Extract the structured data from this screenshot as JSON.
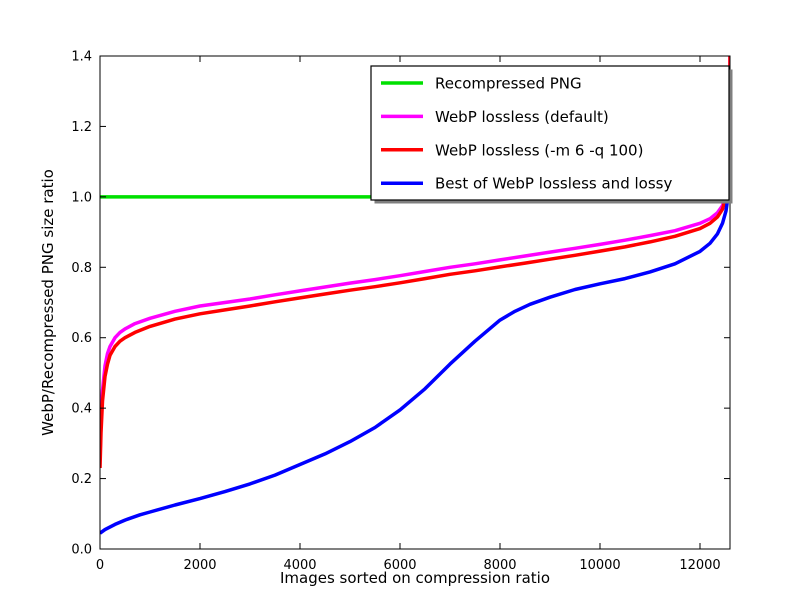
{
  "figure": {
    "background": "#ffffff",
    "frame_color": "#000000"
  },
  "chart_data": {
    "type": "line",
    "title": "",
    "xlabel": "Images sorted on compression ratio",
    "ylabel": "WebP/Recompressed PNG size ratio",
    "xlim": [
      0,
      12600
    ],
    "ylim": [
      0.0,
      1.4
    ],
    "xticks": [
      0,
      2000,
      4000,
      6000,
      8000,
      10000,
      12000
    ],
    "yticks": [
      0.0,
      0.2,
      0.4,
      0.6,
      0.8,
      1.0,
      1.2,
      1.4
    ],
    "grid": false,
    "legend_position": "upper right",
    "legend_shadow": true,
    "series": [
      {
        "name": "Recompressed PNG",
        "color": "#00e000",
        "x": [
          0,
          12600
        ],
        "y": [
          1.0,
          1.0
        ]
      },
      {
        "name": "WebP lossless (default)",
        "color": "#ff00ff",
        "x": [
          0,
          20,
          50,
          100,
          150,
          200,
          300,
          400,
          500,
          700,
          1000,
          1500,
          2000,
          2500,
          3000,
          3500,
          4000,
          4500,
          5000,
          5500,
          6000,
          6500,
          7000,
          7500,
          8000,
          8500,
          9000,
          9500,
          10000,
          10500,
          11000,
          11500,
          12000,
          12200,
          12350,
          12450,
          12520,
          12560,
          12590,
          12600
        ],
        "y": [
          0.26,
          0.36,
          0.45,
          0.52,
          0.555,
          0.575,
          0.6,
          0.615,
          0.625,
          0.64,
          0.655,
          0.675,
          0.69,
          0.7,
          0.71,
          0.722,
          0.733,
          0.744,
          0.755,
          0.765,
          0.776,
          0.788,
          0.8,
          0.81,
          0.821,
          0.832,
          0.843,
          0.854,
          0.865,
          0.877,
          0.89,
          0.904,
          0.925,
          0.938,
          0.955,
          0.975,
          1.01,
          1.07,
          1.2,
          1.4
        ]
      },
      {
        "name": "WebP lossless (-m 6 -q 100)",
        "color": "#ff0000",
        "x": [
          0,
          20,
          50,
          100,
          150,
          200,
          300,
          400,
          500,
          700,
          1000,
          1500,
          2000,
          2500,
          3000,
          3500,
          4000,
          4500,
          5000,
          5500,
          6000,
          6500,
          7000,
          7500,
          8000,
          8500,
          9000,
          9500,
          10000,
          10500,
          11000,
          11500,
          12000,
          12200,
          12350,
          12450,
          12520,
          12560,
          12590,
          12600
        ],
        "y": [
          0.23,
          0.33,
          0.42,
          0.49,
          0.525,
          0.55,
          0.575,
          0.59,
          0.6,
          0.615,
          0.632,
          0.653,
          0.668,
          0.679,
          0.69,
          0.702,
          0.713,
          0.724,
          0.735,
          0.745,
          0.756,
          0.768,
          0.78,
          0.79,
          0.801,
          0.812,
          0.823,
          0.834,
          0.846,
          0.858,
          0.872,
          0.888,
          0.91,
          0.925,
          0.943,
          0.965,
          1.0,
          1.06,
          1.19,
          1.4
        ]
      },
      {
        "name": "Best of WebP lossless and lossy",
        "color": "#0000ff",
        "x": [
          0,
          100,
          300,
          500,
          800,
          1000,
          1500,
          2000,
          2500,
          3000,
          3500,
          4000,
          4500,
          5000,
          5500,
          6000,
          6500,
          7000,
          7500,
          8000,
          8300,
          8600,
          9000,
          9500,
          10000,
          10500,
          11000,
          11500,
          12000,
          12200,
          12350,
          12450,
          12520,
          12560,
          12590,
          12600
        ],
        "y": [
          0.045,
          0.055,
          0.07,
          0.082,
          0.097,
          0.105,
          0.125,
          0.143,
          0.163,
          0.185,
          0.21,
          0.24,
          0.27,
          0.305,
          0.345,
          0.395,
          0.455,
          0.525,
          0.59,
          0.65,
          0.675,
          0.695,
          0.715,
          0.737,
          0.753,
          0.768,
          0.787,
          0.81,
          0.845,
          0.868,
          0.895,
          0.925,
          0.96,
          1.0,
          1.08,
          1.15
        ]
      }
    ]
  }
}
